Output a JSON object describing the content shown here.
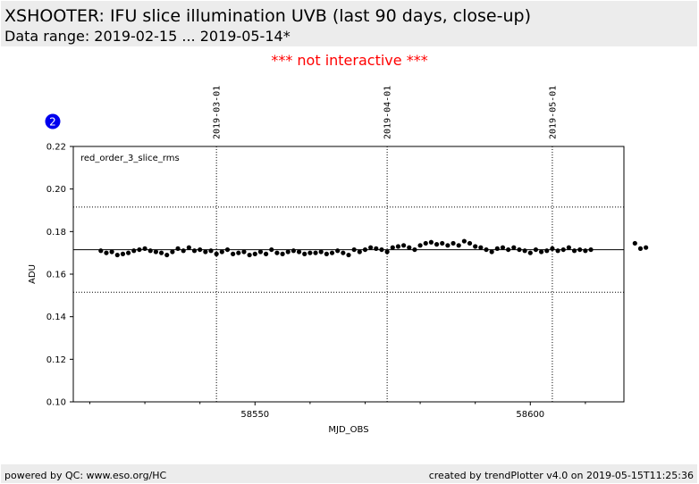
{
  "header": {
    "title": "XSHOOTER: IFU slice illumination UVB (last 90 days, close-up)",
    "subtitle": "Data range: 2019-02-15 ... 2019-05-14*"
  },
  "notice": "*** not interactive ***",
  "badge": "2",
  "footer": {
    "left": "powered by QC: www.eso.org/HC",
    "right": "created by trendPlotter v4.0 on 2019-05-15T11:25:36"
  },
  "chart_data": {
    "type": "scatter",
    "series": [
      {
        "name": "red_order_3_slice_rms",
        "marker_color": "#000000",
        "x": [
          58522.0,
          58523.0,
          58524.0,
          58525.0,
          58526.0,
          58527.0,
          58528.0,
          58529.0,
          58530.0,
          58531.0,
          58532.0,
          58533.0,
          58534.0,
          58535.0,
          58536.0,
          58537.0,
          58538.0,
          58539.0,
          58540.0,
          58541.0,
          58542.0,
          58543.0,
          58544.0,
          58545.0,
          58546.0,
          58547.0,
          58548.0,
          58549.0,
          58550.0,
          58551.0,
          58552.0,
          58553.0,
          58554.0,
          58555.0,
          58556.0,
          58557.0,
          58558.0,
          58559.0,
          58560.0,
          58561.0,
          58562.0,
          58563.0,
          58564.0,
          58565.0,
          58566.0,
          58567.0,
          58568.0,
          58569.0,
          58570.0,
          58571.0,
          58572.0,
          58573.0,
          58574.0,
          58575.0,
          58576.0,
          58577.0,
          58578.0,
          58579.0,
          58580.0,
          58581.0,
          58582.0,
          58583.0,
          58584.0,
          58585.0,
          58586.0,
          58587.0,
          58588.0,
          58589.0,
          58590.0,
          58591.0,
          58592.0,
          58593.0,
          58594.0,
          58595.0,
          58596.0,
          58597.0,
          58598.0,
          58599.0,
          58600.0,
          58601.0,
          58602.0,
          58603.0,
          58604.0,
          58605.0,
          58606.0,
          58607.0,
          58608.0,
          58609.0,
          58610.0,
          58611.0,
          58619.0,
          58620.0,
          58621.0
        ],
        "y": [
          0.171,
          0.17,
          0.1705,
          0.169,
          0.1695,
          0.17,
          0.171,
          0.1715,
          0.172,
          0.171,
          0.1705,
          0.17,
          0.169,
          0.1705,
          0.172,
          0.171,
          0.1725,
          0.171,
          0.1715,
          0.1705,
          0.171,
          0.1695,
          0.1705,
          0.1715,
          0.1695,
          0.17,
          0.1705,
          0.169,
          0.1695,
          0.1705,
          0.1695,
          0.1715,
          0.17,
          0.1695,
          0.1705,
          0.171,
          0.1705,
          0.1695,
          0.17,
          0.17,
          0.1705,
          0.1695,
          0.17,
          0.171,
          0.17,
          0.169,
          0.1715,
          0.1705,
          0.1715,
          0.1725,
          0.172,
          0.1715,
          0.1705,
          0.1725,
          0.173,
          0.1735,
          0.1725,
          0.1715,
          0.1735,
          0.1745,
          0.175,
          0.174,
          0.1745,
          0.1735,
          0.1745,
          0.1735,
          0.1755,
          0.1745,
          0.173,
          0.1725,
          0.1715,
          0.1705,
          0.172,
          0.1725,
          0.1715,
          0.1725,
          0.1715,
          0.171,
          0.17,
          0.1715,
          0.1705,
          0.171,
          0.172,
          0.171,
          0.1715,
          0.1725,
          0.171,
          0.1715,
          0.171,
          0.1715,
          0.1745,
          0.172,
          0.1725
        ]
      }
    ],
    "reference_lines": {
      "mean": 0.1715,
      "upper": 0.1915,
      "lower": 0.1515
    },
    "date_markers": [
      {
        "x": 58543,
        "label": "2019-03-01"
      },
      {
        "x": 58574,
        "label": "2019-04-01"
      },
      {
        "x": 58604,
        "label": "2019-05-01"
      }
    ],
    "xlabel": "MJD_OBS",
    "ylabel": "ADU",
    "xlim": [
      58517,
      58617
    ],
    "ylim": [
      0.1,
      0.22
    ],
    "xticks": [
      58550,
      58600
    ],
    "yticks": [
      0.1,
      0.12,
      0.14,
      0.16,
      0.18,
      0.2,
      0.22
    ],
    "grid": false
  }
}
